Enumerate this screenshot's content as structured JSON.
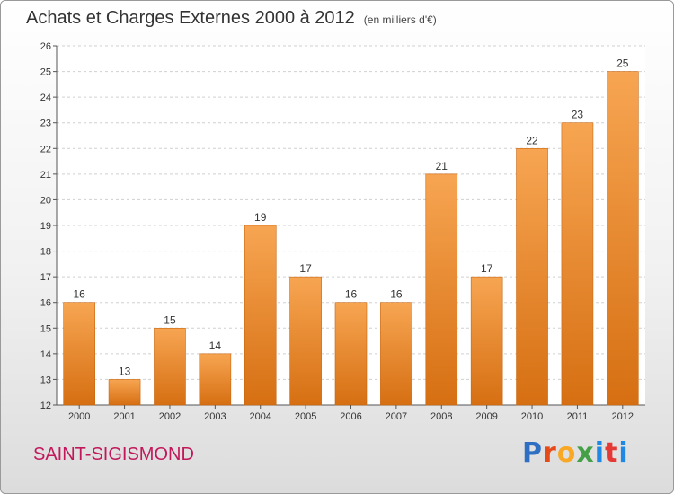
{
  "header": {
    "title": "Achats et Charges Externes 2000 à 2012",
    "subtitle": "(en milliers d'€)"
  },
  "footer": {
    "commune": "SAINT-SIGISMOND",
    "brand": [
      "P",
      "r",
      "o",
      "x",
      "i",
      "t",
      "i"
    ]
  },
  "colors": {
    "bar_top": "#f7a552",
    "bar_bottom": "#d66f12",
    "grid": "#d0d0d0",
    "axis": "#555555"
  },
  "chart_data": {
    "type": "bar",
    "categories": [
      "2000",
      "2001",
      "2002",
      "2003",
      "2004",
      "2005",
      "2006",
      "2007",
      "2008",
      "2009",
      "2010",
      "2011",
      "2012"
    ],
    "values": [
      16,
      13,
      15,
      14,
      19,
      17,
      16,
      16,
      21,
      17,
      22,
      23,
      25
    ],
    "ylim": [
      12,
      26
    ],
    "yticks": [
      12,
      13,
      14,
      15,
      16,
      17,
      18,
      19,
      20,
      21,
      22,
      23,
      24,
      25,
      26
    ],
    "grid": true,
    "legend": "none"
  }
}
